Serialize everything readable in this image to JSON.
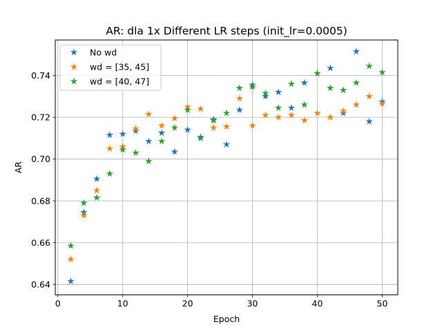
{
  "chart_data": {
    "type": "scatter",
    "title": "AR: dla 1x Different LR steps (init_lr=0.0005)",
    "xlabel": "Epoch",
    "ylabel": "AR",
    "xlim": [
      -0.4,
      52.4
    ],
    "ylim": [
      0.635,
      0.757
    ],
    "xticks": [
      0,
      10,
      20,
      30,
      40,
      50
    ],
    "yticks": [
      0.64,
      0.66,
      0.68,
      0.7,
      0.72,
      0.74
    ],
    "ytick_labels": [
      "0.64",
      "0.66",
      "0.68",
      "0.70",
      "0.72",
      "0.74"
    ],
    "grid": true,
    "legend_position": "top-left",
    "marker": "star",
    "series": [
      {
        "name": "No wd",
        "color": "#1f77b4",
        "x": [
          2,
          4,
          6,
          8,
          10,
          12,
          14,
          16,
          18,
          20,
          22,
          24,
          26,
          28,
          30,
          32,
          34,
          36,
          38,
          40,
          42,
          44,
          46,
          48,
          50
        ],
        "y": [
          0.6415,
          0.6745,
          0.6905,
          0.7115,
          0.712,
          0.7135,
          0.7085,
          0.7125,
          0.7035,
          0.714,
          0.7105,
          0.719,
          0.707,
          0.7235,
          0.7355,
          0.73,
          0.732,
          0.7245,
          0.7365,
          0.741,
          0.7435,
          0.722,
          0.7515,
          0.718,
          0.7275
        ]
      },
      {
        "name": "wd = [35, 45]",
        "color": "#ff7f0e",
        "x": [
          2,
          4,
          6,
          8,
          10,
          12,
          14,
          16,
          18,
          20,
          22,
          24,
          26,
          28,
          30,
          32,
          34,
          36,
          38,
          40,
          42,
          44,
          46,
          48,
          50
        ],
        "y": [
          0.652,
          0.673,
          0.685,
          0.705,
          0.706,
          0.7145,
          0.7215,
          0.716,
          0.7195,
          0.725,
          0.724,
          0.715,
          0.7155,
          0.729,
          0.716,
          0.721,
          0.72,
          0.721,
          0.7185,
          0.722,
          0.72,
          0.723,
          0.726,
          0.73,
          0.7265
        ]
      },
      {
        "name": "wd = [40, 47]",
        "color": "#2ca02c",
        "x": [
          2,
          4,
          6,
          8,
          10,
          12,
          14,
          16,
          18,
          20,
          22,
          24,
          26,
          28,
          30,
          32,
          34,
          36,
          38,
          40,
          42,
          44,
          46,
          48,
          50
        ],
        "y": [
          0.6585,
          0.679,
          0.6815,
          0.693,
          0.7045,
          0.703,
          0.699,
          0.7085,
          0.715,
          0.7235,
          0.71,
          0.7185,
          0.722,
          0.734,
          0.7345,
          0.7315,
          0.7245,
          0.736,
          0.726,
          0.741,
          0.734,
          0.733,
          0.7365,
          0.7445,
          0.7415
        ]
      }
    ]
  }
}
